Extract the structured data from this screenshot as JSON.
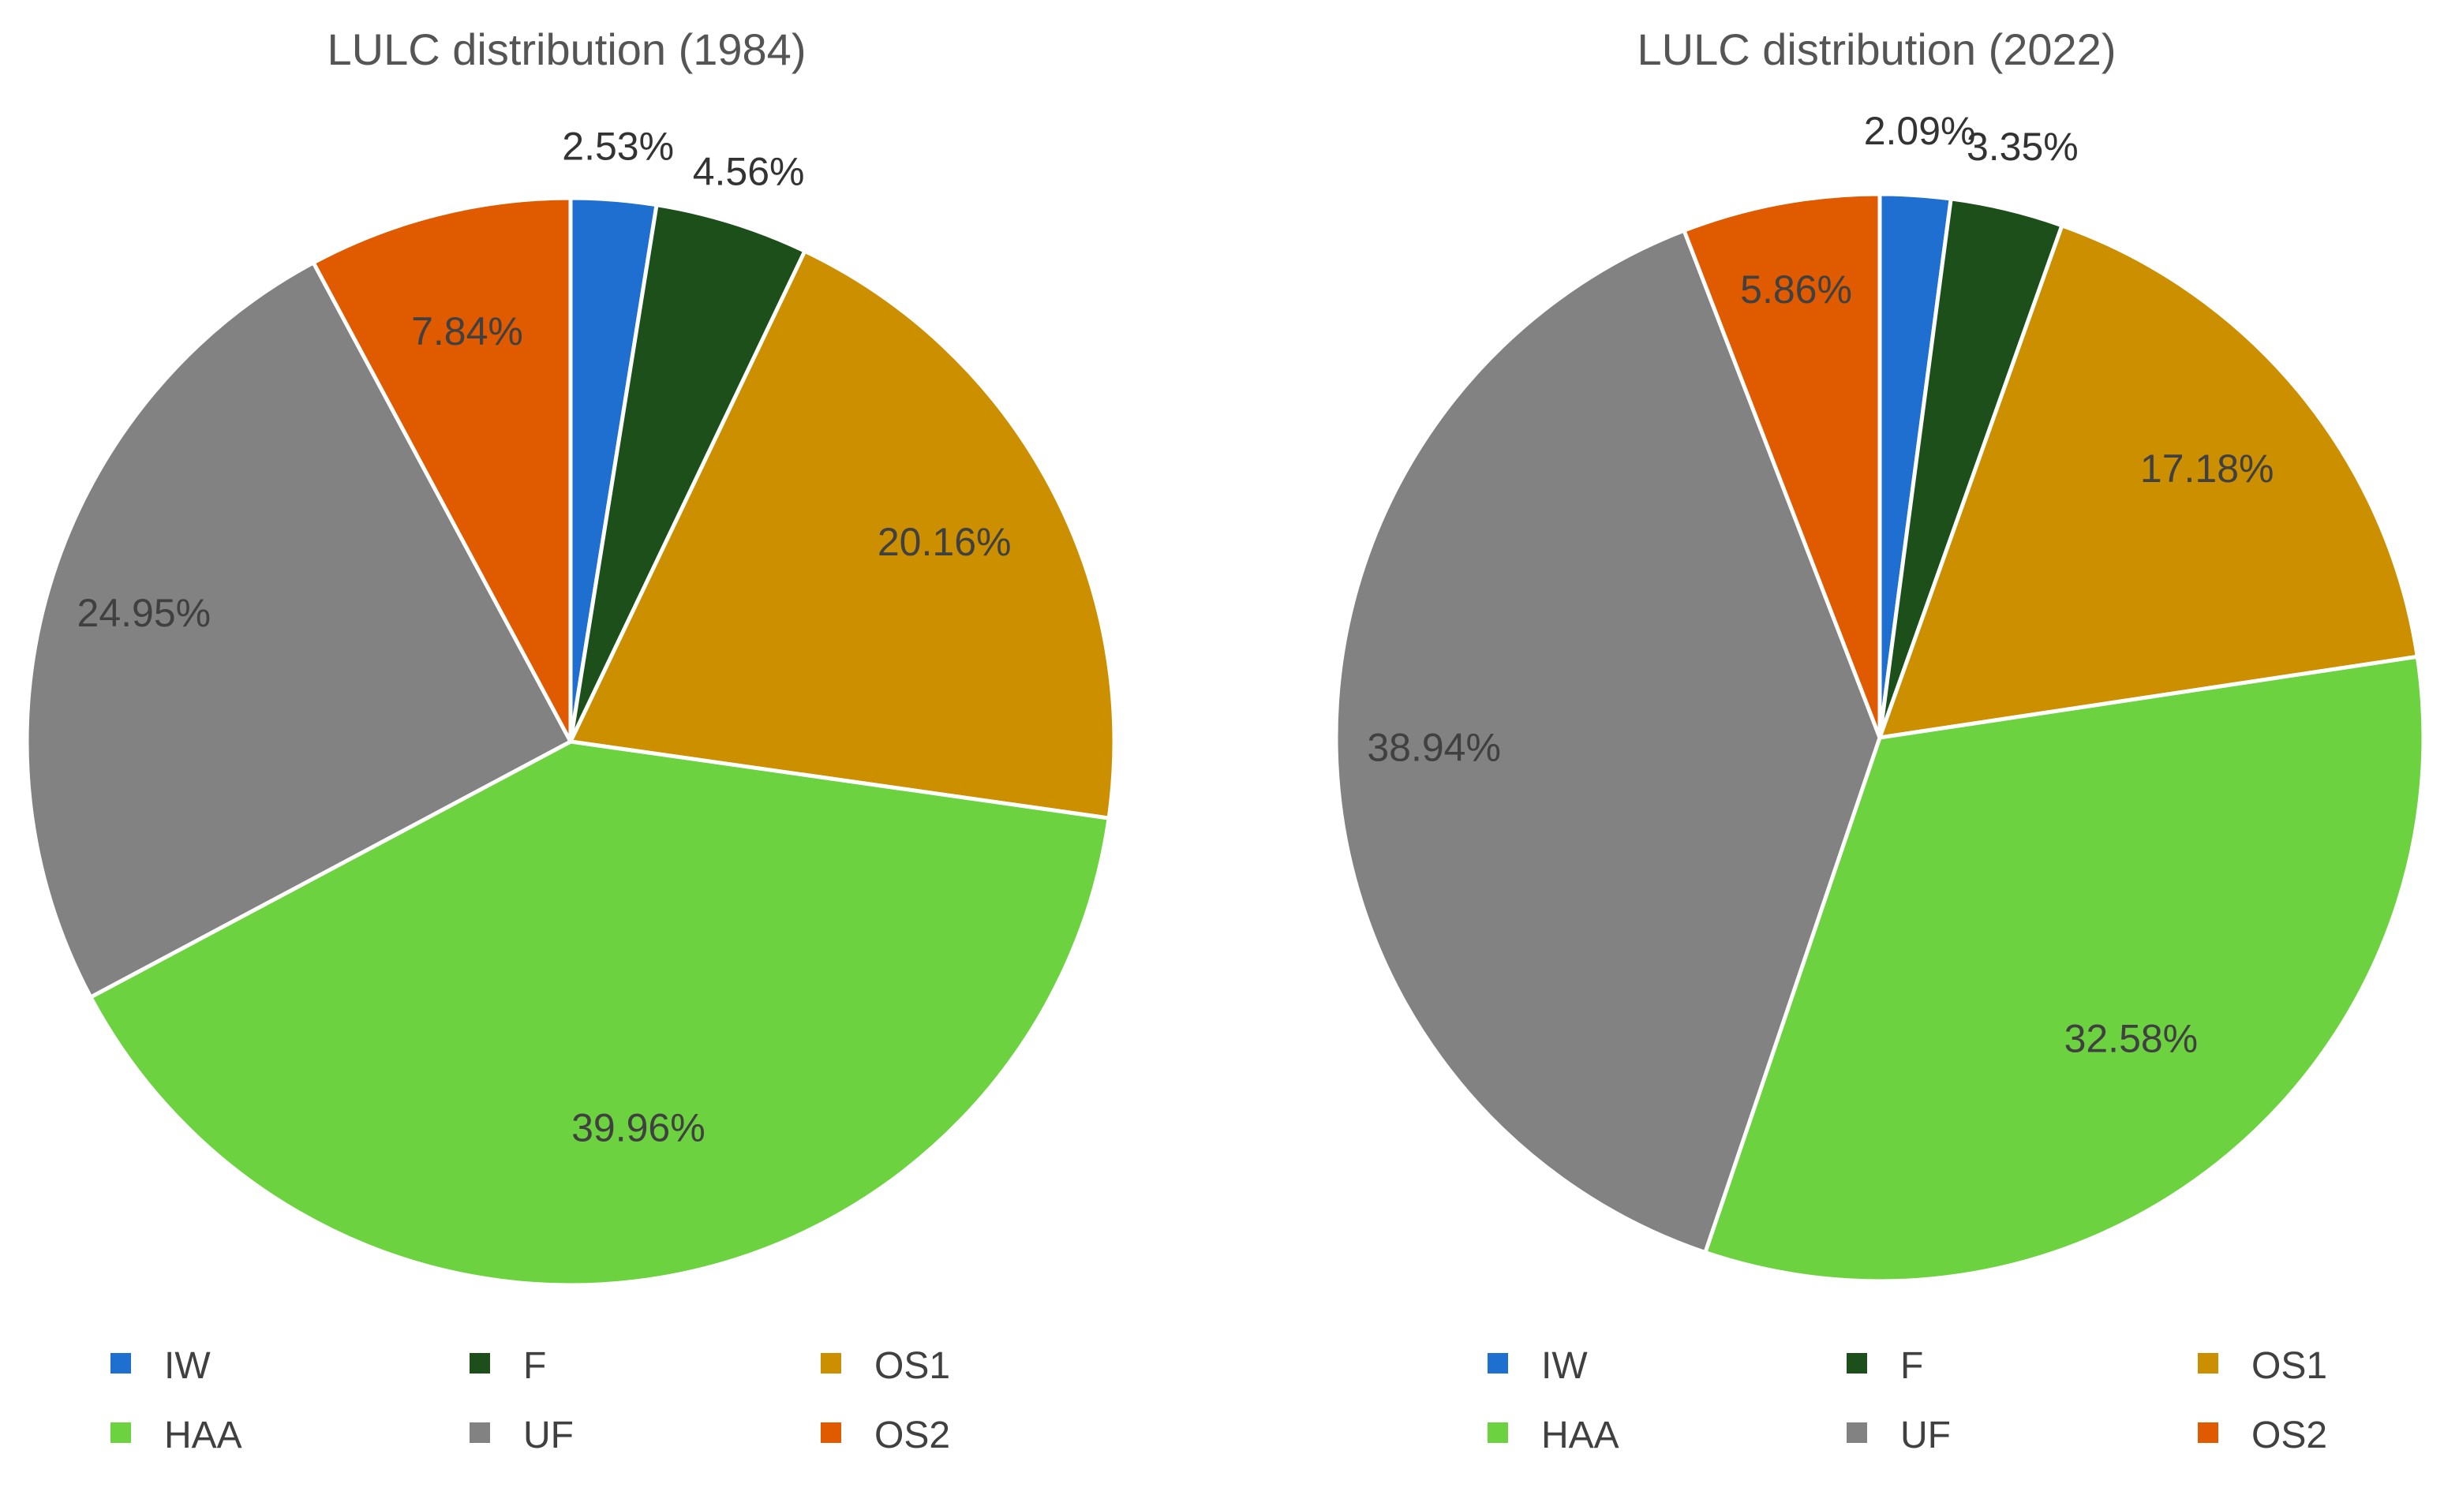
{
  "chart_data": [
    {
      "type": "pie",
      "title": "LULC distribution (1984)",
      "categories": [
        "IW",
        "F",
        "OS1",
        "HAA",
        "UF",
        "OS2"
      ],
      "values": [
        2.53,
        4.56,
        20.16,
        39.96,
        24.95,
        7.84
      ],
      "labels": [
        "2.53%",
        "4.56%",
        "20.16%",
        "39.96%",
        "24.95%",
        "7.84%"
      ],
      "colors": [
        "#1f6fd1",
        "#1d4f1a",
        "#cc8f00",
        "#6cd23f",
        "#828282",
        "#e05a00"
      ],
      "legend": "bottom"
    },
    {
      "type": "pie",
      "title": "LULC distribution (2022)",
      "categories": [
        "IW",
        "F",
        "OS1",
        "HAA",
        "UF",
        "OS2"
      ],
      "values": [
        2.09,
        3.35,
        17.18,
        32.58,
        38.94,
        5.86
      ],
      "labels": [
        "2.09%",
        "3.35%",
        "17.18%",
        "32.58%",
        "38.94%",
        "5.86%"
      ],
      "colors": [
        "#1f6fd1",
        "#1d4f1a",
        "#cc8f00",
        "#6cd23f",
        "#828282",
        "#e05a00"
      ],
      "legend": "bottom"
    }
  ]
}
